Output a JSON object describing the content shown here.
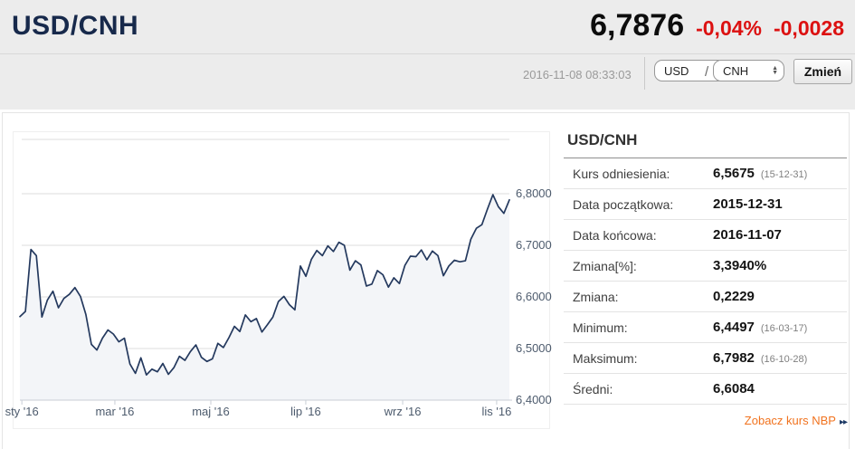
{
  "header": {
    "pair_title": "USD/CNH",
    "price": "6,7876",
    "change_pct": "-0,04%",
    "change_abs": "-0,0028",
    "timestamp": "2016-11-08 08:33:03",
    "base_currency": "USD",
    "quote_currency": "CNH",
    "separator": "/",
    "change_button_label": "Zmień",
    "accent_red": "#dc1111",
    "title_color": "#17294b"
  },
  "chart_data": {
    "type": "area",
    "title": "",
    "xlabel": "",
    "ylabel": "",
    "x_range": [
      "2015-12-31",
      "2016-11-07"
    ],
    "x_tick_labels": [
      "sty '16",
      "mar '16",
      "maj '16",
      "lip '16",
      "wrz '16",
      "lis '16"
    ],
    "y_ticks": [
      6.8,
      6.7,
      6.6,
      6.5,
      6.4
    ],
    "y_tick_labels": [
      "6,8000",
      "6,7000",
      "6,6000",
      "6,5000",
      "6,4000"
    ],
    "ylim": [
      6.4,
      6.9
    ],
    "grid": true,
    "legend": false,
    "line_color": "#24395e",
    "fill_color": "#f3f5f8",
    "values": [
      6.562,
      6.572,
      6.692,
      6.68,
      6.561,
      6.594,
      6.611,
      6.579,
      6.597,
      6.605,
      6.618,
      6.601,
      6.566,
      6.508,
      6.497,
      6.52,
      6.536,
      6.528,
      6.513,
      6.52,
      6.47,
      6.452,
      6.482,
      6.449,
      6.46,
      6.455,
      6.471,
      6.45,
      6.463,
      6.485,
      6.477,
      6.494,
      6.507,
      6.483,
      6.475,
      6.48,
      6.51,
      6.502,
      6.521,
      6.543,
      6.533,
      6.565,
      6.552,
      6.558,
      6.532,
      6.546,
      6.561,
      6.591,
      6.601,
      6.585,
      6.575,
      6.66,
      6.64,
      6.673,
      6.69,
      6.68,
      6.699,
      6.688,
      6.706,
      6.7,
      6.652,
      6.67,
      6.662,
      6.621,
      6.625,
      6.651,
      6.643,
      6.619,
      6.637,
      6.626,
      6.661,
      6.679,
      6.678,
      6.691,
      6.672,
      6.689,
      6.68,
      6.641,
      6.66,
      6.671,
      6.668,
      6.67,
      6.712,
      6.733,
      6.74,
      6.77,
      6.798,
      6.775,
      6.762,
      6.788
    ]
  },
  "stats": {
    "heading": "USD/CNH",
    "rows": [
      {
        "label": "Kurs odniesienia:",
        "value": "6,5675",
        "note": "(15-12-31)"
      },
      {
        "label": "Data początkowa:",
        "value": "2015-12-31",
        "note": ""
      },
      {
        "label": "Data końcowa:",
        "value": "2016-11-07",
        "note": ""
      },
      {
        "label": "Zmiana[%]:",
        "value": "3,3940%",
        "note": ""
      },
      {
        "label": "Zmiana:",
        "value": "0,2229",
        "note": ""
      },
      {
        "label": "Minimum:",
        "value": "6,4497",
        "note": "(16-03-17)"
      },
      {
        "label": "Maksimum:",
        "value": "6,7982",
        "note": "(16-10-28)"
      },
      {
        "label": "Średni:",
        "value": "6,6084",
        "note": ""
      }
    ],
    "link_label": "Zobacz kurs NBP",
    "link_arrows": "▸▸",
    "link_color": "#f1731f"
  }
}
